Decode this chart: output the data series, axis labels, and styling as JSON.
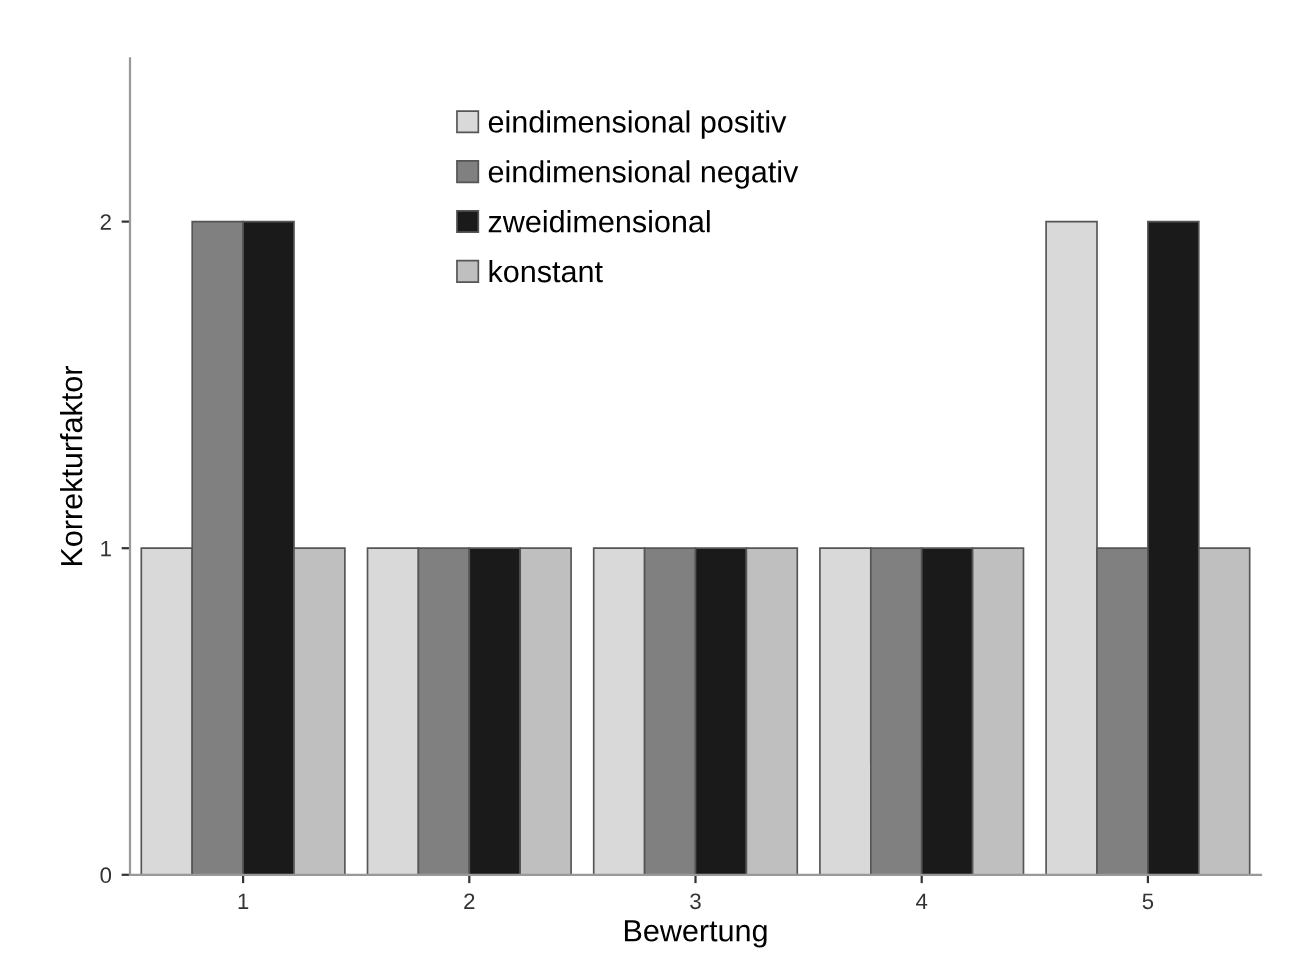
{
  "chart_data": {
    "type": "bar",
    "xlabel": "Bewertung",
    "ylabel": "Korrekturfaktor",
    "categories": [
      "1",
      "2",
      "3",
      "4",
      "5"
    ],
    "series": [
      {
        "name": "eindimensional positiv",
        "color": "#d9d9d9",
        "values": [
          1,
          1,
          1,
          1,
          2
        ]
      },
      {
        "name": "eindimensional negativ",
        "color": "#808080",
        "values": [
          2,
          1,
          1,
          1,
          1
        ]
      },
      {
        "name": "zweidimensional",
        "color": "#1a1a1a",
        "values": [
          2,
          1,
          1,
          1,
          2
        ]
      },
      {
        "name": "konstant",
        "color": "#bfbfbf",
        "values": [
          1,
          1,
          1,
          1,
          1
        ]
      }
    ],
    "ylim": [
      0,
      2.5
    ],
    "yticks": [
      0,
      1,
      2
    ],
    "grid": false,
    "legend": "top"
  }
}
